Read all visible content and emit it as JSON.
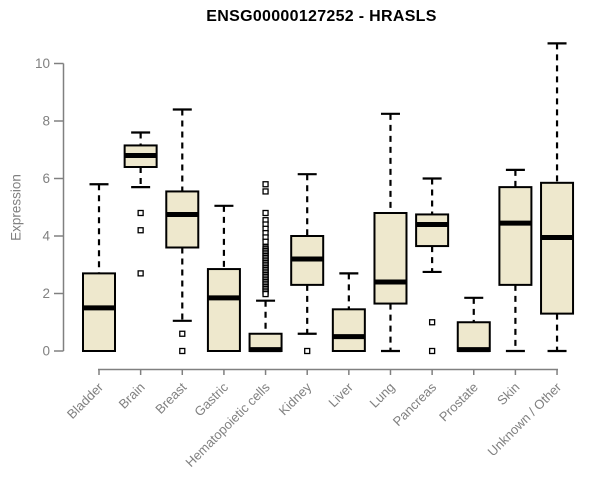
{
  "chart_data": {
    "type": "box",
    "title": "ENSG00000127252 - HRASLS",
    "ylabel": "Expression",
    "xlabel": "",
    "ylim": [
      -0.35,
      10.9
    ],
    "yticks": [
      0,
      2,
      4,
      6,
      8,
      10
    ],
    "grid": false,
    "legend": false,
    "categories": [
      "Bladder",
      "Brain",
      "Breast",
      "Gastric",
      "Hematopoietic cells",
      "Kidney",
      "Liver",
      "Lung",
      "Pancreas",
      "Prostate",
      "Skin",
      "Unknown / Other"
    ],
    "boxes": [
      {
        "category": "Bladder",
        "whisker_low": 0,
        "q1": 0,
        "median": 1.5,
        "q3": 2.7,
        "whisker_high": 5.8,
        "outliers": []
      },
      {
        "category": "Brain",
        "whisker_low": 5.7,
        "q1": 6.4,
        "median": 6.8,
        "q3": 7.15,
        "whisker_high": 7.6,
        "outliers": [
          4.8,
          4.2,
          2.7
        ]
      },
      {
        "category": "Breast",
        "whisker_low": 1.05,
        "q1": 3.6,
        "median": 4.75,
        "q3": 5.55,
        "whisker_high": 8.4,
        "outliers": [
          0.6,
          0
        ]
      },
      {
        "category": "Gastric",
        "whisker_low": 0,
        "q1": 0,
        "median": 1.85,
        "q3": 2.85,
        "whisker_high": 5.05,
        "outliers": []
      },
      {
        "category": "Hematopoietic cells",
        "whisker_low": 0,
        "q1": 0,
        "median": 0.05,
        "q3": 0.6,
        "whisker_high": 1.75,
        "outliers": [
          5.8,
          5.55,
          4.8,
          4.55,
          4.4,
          4.25,
          4.1,
          3.95,
          3.8,
          3.6,
          3.54,
          3.48,
          3.42,
          3.36,
          3.3,
          3.24,
          3.18,
          3.12,
          3.06,
          3.0,
          2.94,
          2.88,
          2.82,
          2.76,
          2.7,
          2.64,
          2.58,
          2.52,
          2.46,
          2.4,
          2.34,
          2.28,
          2.22,
          2.16,
          2.1,
          2.04,
          1.98
        ]
      },
      {
        "category": "Kidney",
        "whisker_low": 0.6,
        "q1": 2.3,
        "median": 3.2,
        "q3": 4.0,
        "whisker_high": 6.15,
        "outliers": [
          0
        ]
      },
      {
        "category": "Liver",
        "whisker_low": 0,
        "q1": 0,
        "median": 0.5,
        "q3": 1.45,
        "whisker_high": 2.7,
        "outliers": []
      },
      {
        "category": "Lung",
        "whisker_low": 0,
        "q1": 1.65,
        "median": 2.4,
        "q3": 4.8,
        "whisker_high": 8.25,
        "outliers": []
      },
      {
        "category": "Pancreas",
        "whisker_low": 2.75,
        "q1": 3.65,
        "median": 4.4,
        "q3": 4.75,
        "whisker_high": 6.0,
        "outliers": [
          1.0,
          0
        ]
      },
      {
        "category": "Prostate",
        "whisker_low": 0,
        "q1": 0,
        "median": 0.05,
        "q3": 1.0,
        "whisker_high": 1.85,
        "outliers": []
      },
      {
        "category": "Skin",
        "whisker_low": 0,
        "q1": 2.3,
        "median": 4.45,
        "q3": 5.7,
        "whisker_high": 6.3,
        "outliers": []
      },
      {
        "category": "Unknown / Other",
        "whisker_low": 0,
        "q1": 1.3,
        "median": 3.95,
        "q3": 5.85,
        "whisker_high": 10.7,
        "outliers": []
      }
    ],
    "colors": {
      "box_fill": "#EEE8CD",
      "box_border": "#000000",
      "median": "#000000",
      "whisker": "#000000",
      "axis": "#808080",
      "text": "#808080",
      "title": "#000000",
      "background": "#FFFFFF"
    }
  }
}
